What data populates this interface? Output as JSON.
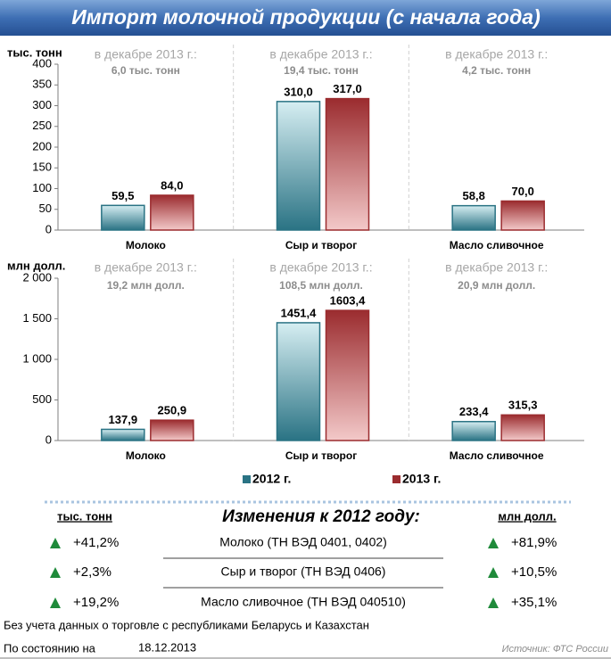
{
  "title": "Импорт молочной продукции (с начала года)",
  "chart_data": [
    {
      "type": "bar",
      "ylabel": "тыс. тонн",
      "categories": [
        "Молоко",
        "Сыр и творог",
        "Масло сливочное"
      ],
      "annotations": [
        [
          "в декабре 2013 г.:",
          "6,0 тыс. тонн"
        ],
        [
          "в декабре 2013 г.:",
          "19,4 тыс. тонн"
        ],
        [
          "в декабре 2013 г.:",
          "4,2 тыс. тонн"
        ]
      ],
      "series": [
        {
          "color": "#2a7384",
          "values": [
            59.5,
            310.0,
            58.8
          ],
          "value_labels": [
            "59,5",
            "310,0",
            "58,8"
          ]
        },
        {
          "color": "#9b2c2f",
          "values": [
            84.0,
            317.0,
            70.0
          ],
          "value_labels": [
            "84,0",
            "317,0",
            "70,0"
          ]
        }
      ],
      "ylim": [
        0,
        400
      ],
      "yticks": [
        0,
        50,
        100,
        150,
        200,
        250,
        300,
        350,
        400
      ]
    },
    {
      "type": "bar",
      "ylabel": "млн долл.",
      "categories": [
        "Молоко",
        "Сыр и творог",
        "Масло сливочное"
      ],
      "annotations": [
        [
          "в декабре 2013 г.:",
          "19,2 млн долл."
        ],
        [
          "в декабре 2013 г.:",
          "108,5 млн долл."
        ],
        [
          "в декабре 2013 г.:",
          "20,9 млн долл."
        ]
      ],
      "series": [
        {
          "name": "2012 г.",
          "color": "#2a7384",
          "values": [
            137.9,
            1451.4,
            233.4
          ],
          "value_labels": [
            "137,9",
            "1451,4",
            "233,4"
          ]
        },
        {
          "name": "2013 г.",
          "color": "#9b2c2f",
          "values": [
            250.9,
            1603.4,
            315.3
          ],
          "value_labels": [
            "250,9",
            "1603,4",
            "315,3"
          ]
        }
      ],
      "ylim": [
        0,
        2000
      ],
      "yticks": [
        0,
        500,
        {
          "value": 1000,
          "label": "1 000"
        },
        {
          "value": 1500,
          "label": "1 500"
        },
        {
          "value": 2000,
          "label": "2 000"
        }
      ]
    }
  ],
  "changes": {
    "title": "Изменения к 2012 году:",
    "left_header": "тыс. тонн",
    "right_header": "млн долл.",
    "rows": [
      [
        "+41,2%",
        "Молоко (ТН ВЭД 0401, 0402)",
        "+81,9%"
      ],
      [
        "+2,3%",
        "Сыр и творог (ТН ВЭД 0406)",
        "+10,5%"
      ],
      [
        "+19,2%",
        "Масло сливочное (ТН ВЭД 040510)",
        "+35,1%"
      ]
    ]
  },
  "footer": {
    "note": "Без учета данных о торговле с республиками Беларусь и Казахстан",
    "as_of_label": "По состоянию на",
    "as_of_date": "18.12.2013",
    "source": "Источник: ФТС России"
  }
}
